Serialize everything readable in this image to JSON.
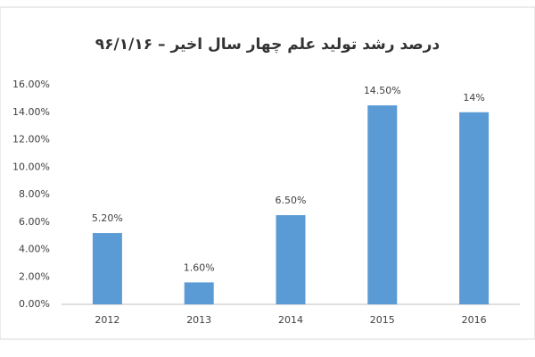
{
  "chart_data": {
    "type": "bar",
    "title": "درصد رشد تولید علم چهار سال اخیر – ۹۶/۱/۱۶",
    "categories": [
      "2012",
      "2013",
      "2014",
      "2015",
      "2016"
    ],
    "values": [
      5.2,
      1.6,
      6.5,
      14.5,
      14
    ],
    "value_labels": [
      "5.20%",
      "1.60%",
      "6.50%",
      "14.50%",
      "14%"
    ],
    "color": "#5b9bd5",
    "ylim": [
      0,
      16
    ],
    "yticks": [
      {
        "value": 0,
        "label": "0.00%"
      },
      {
        "value": 2,
        "label": "2.00%"
      },
      {
        "value": 4,
        "label": "4.00%"
      },
      {
        "value": 6,
        "label": "6.00%"
      },
      {
        "value": 8,
        "label": "8.00%"
      },
      {
        "value": 10,
        "label": "10.00%"
      },
      {
        "value": 12,
        "label": "12.00%"
      },
      {
        "value": 14,
        "label": "14.00%"
      },
      {
        "value": 16,
        "label": "16.00%"
      }
    ],
    "grid": false
  }
}
